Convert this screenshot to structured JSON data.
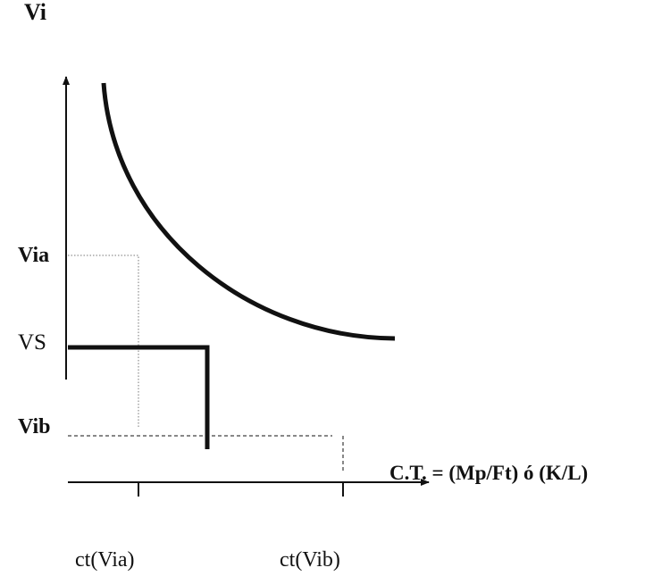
{
  "diagram": {
    "y_axis_label": "Vi",
    "x_axis_label": "C.T. = (Mp/Ft) ó (K/L)",
    "y_levels": {
      "via": "Via",
      "vs": "VS",
      "vib": "Vib"
    },
    "x_ticks": {
      "ct_via": "ct(Via)",
      "ct_vib": "ct(Vib)"
    },
    "colors": {
      "ink": "#111111",
      "dotted": "#777777"
    }
  }
}
